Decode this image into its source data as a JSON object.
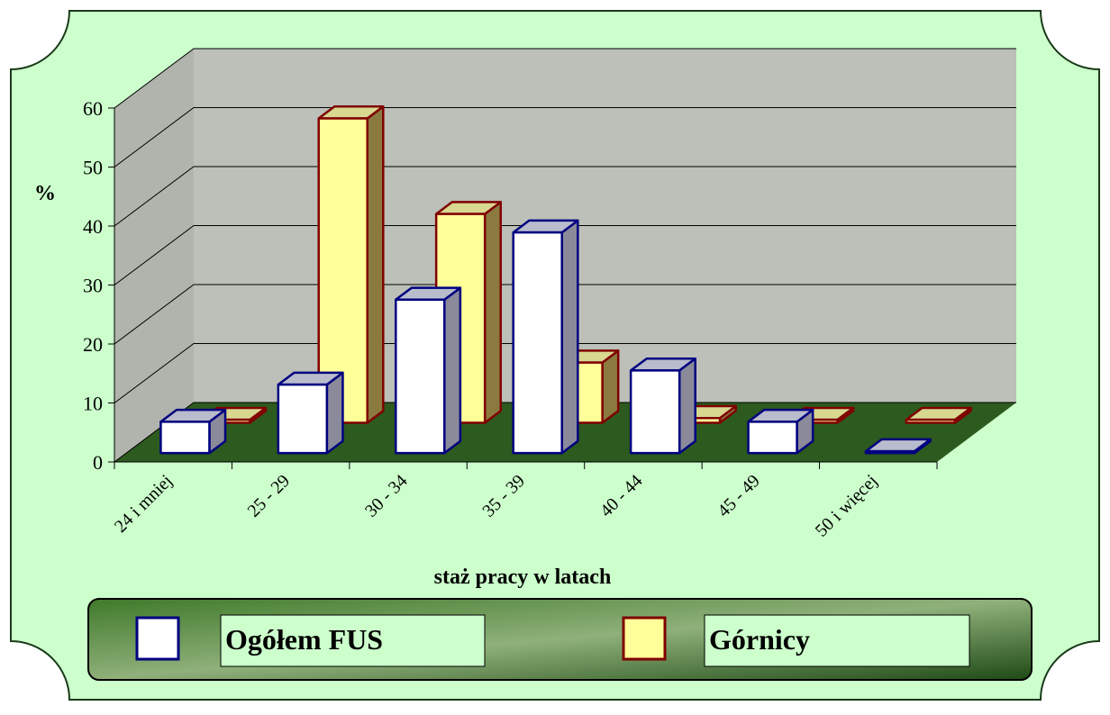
{
  "chart_data": {
    "type": "bar3d",
    "x_label": "staż pracy w latach",
    "y_label": "%",
    "categories": [
      "24 i mniej",
      "25 - 29",
      "30 - 34",
      "35 - 39",
      "40 - 44",
      "45 - 49",
      "50 i więcej"
    ],
    "series": [
      {
        "name": "Ogółem FUS",
        "color": "#ffffff",
        "edge": "#000080",
        "values": [
          5.3,
          11.6,
          26,
          37.4,
          14,
          5.3,
          0.3
        ]
      },
      {
        "name": "Górnicy",
        "color": "#ffff99",
        "edge": "#800000",
        "values": [
          0.5,
          51.6,
          35.4,
          10.2,
          0.8,
          0.5,
          0.5
        ]
      }
    ],
    "ylim": [
      0,
      60
    ],
    "yticks": [
      0,
      10,
      20,
      30,
      40,
      50,
      60
    ],
    "grid": true
  }
}
